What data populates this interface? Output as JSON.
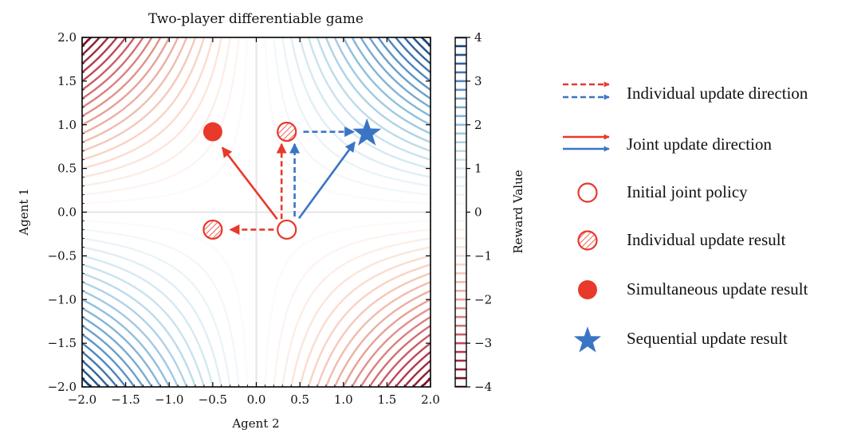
{
  "chart_data": {
    "type": "contour",
    "title": "Two-player differentiable game",
    "xlabel": "Agent 2",
    "ylabel": "Agent 1",
    "colorbar_label": "Reward Value",
    "xlim": [
      -2.0,
      2.0
    ],
    "ylim": [
      -2.0,
      2.0
    ],
    "clim": [
      -4,
      4
    ],
    "colormap": "RdBu",
    "function": "reward = x * y",
    "grid": false,
    "xticks": [
      "−2.0",
      "−1.5",
      "−1.0",
      "−0.5",
      "0.0",
      "0.5",
      "1.0",
      "1.5",
      "2.0"
    ],
    "yticks": [
      "−2.0",
      "−1.5",
      "−1.0",
      "−0.5",
      "0.0",
      "0.5",
      "1.0",
      "1.5",
      "2.0"
    ],
    "colorbar_ticks": [
      "4",
      "3",
      "2",
      "1",
      "0",
      "−1",
      "−2",
      "−3",
      "−4"
    ],
    "points": [
      {
        "name": "initial",
        "x": 0.35,
        "y": -0.2,
        "marker": "open-circle",
        "color": "#e8392b"
      },
      {
        "name": "individual-left",
        "x": -0.5,
        "y": -0.2,
        "marker": "hatched-circle",
        "color": "#e8392b"
      },
      {
        "name": "individual-up",
        "x": 0.35,
        "y": 0.92,
        "marker": "hatched-circle",
        "color": "#e8392b"
      },
      {
        "name": "simultaneous",
        "x": -0.5,
        "y": 0.92,
        "marker": "filled-circle",
        "color": "#e8392b"
      },
      {
        "name": "sequential",
        "x": 1.27,
        "y": 0.92,
        "marker": "star",
        "color": "#3a75c4"
      }
    ],
    "arrows": [
      {
        "name": "individual-left-arrow",
        "from": [
          0.2,
          -0.2
        ],
        "to": [
          -0.3,
          -0.2
        ],
        "style": "dashed",
        "color": "#e8392b"
      },
      {
        "name": "individual-up-red-arrow",
        "from": [
          0.29,
          -0.08
        ],
        "to": [
          0.29,
          0.78
        ],
        "style": "dashed",
        "color": "#e8392b"
      },
      {
        "name": "individual-up-blue-arrow",
        "from": [
          0.44,
          -0.05
        ],
        "to": [
          0.44,
          0.78
        ],
        "style": "dashed",
        "color": "#3a75c4"
      },
      {
        "name": "individual-right-arrow",
        "from": [
          0.54,
          0.92
        ],
        "to": [
          1.12,
          0.92
        ],
        "style": "dashed",
        "color": "#3a75c4"
      },
      {
        "name": "joint-red-arrow",
        "from": [
          0.24,
          -0.08
        ],
        "to": [
          -0.39,
          0.74
        ],
        "style": "solid",
        "color": "#e8392b"
      },
      {
        "name": "joint-blue-arrow",
        "from": [
          0.49,
          -0.07
        ],
        "to": [
          1.13,
          0.8
        ],
        "style": "solid",
        "color": "#3a75c4"
      }
    ]
  },
  "legend": [
    {
      "label": "Individual update direction",
      "symbol": "dashed-arrows"
    },
    {
      "label": "Joint update direction",
      "symbol": "solid-arrows"
    },
    {
      "label": "Initial joint policy",
      "symbol": "open-circle"
    },
    {
      "label": "Individual update result",
      "symbol": "hatched-circle"
    },
    {
      "label": "Simultaneous update result",
      "symbol": "filled-circle"
    },
    {
      "label": "Sequential update result",
      "symbol": "star"
    }
  ],
  "colors": {
    "red": "#e8392b",
    "blue": "#3a75c4"
  }
}
